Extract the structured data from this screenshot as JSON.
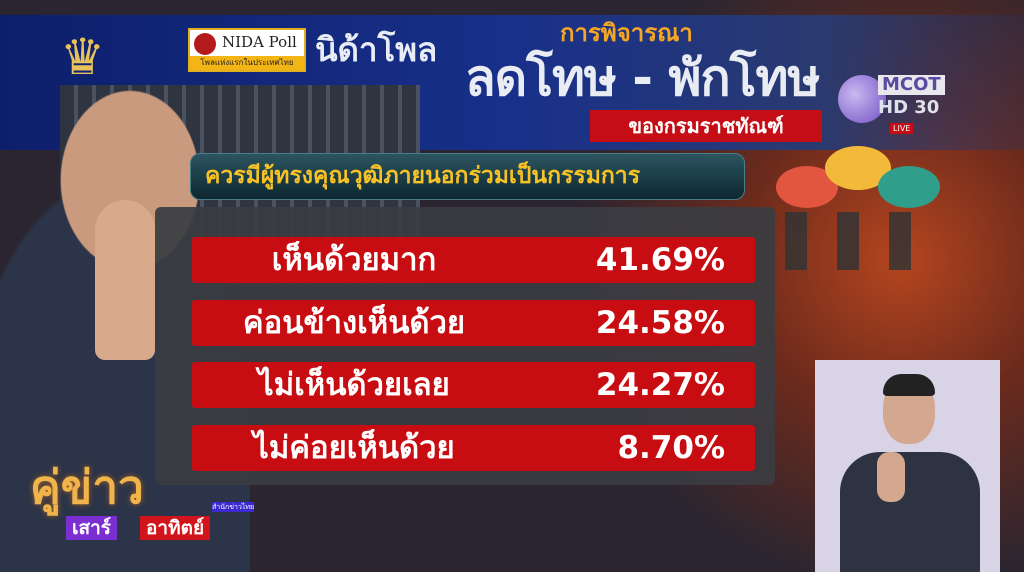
{
  "header": {
    "nida_logo": "NIDA Poll",
    "nida_tagline": "โพลแห่งแรกในประเทศไทย",
    "nida_thai": "นิด้าโพล",
    "title_top": "การพิจารณา",
    "title_main": "ลดโทษ - พักโทษ",
    "title_sub": "ของกรมราชทัณฑ์"
  },
  "channel": {
    "name": "MCOT",
    "hd": "HD 30",
    "live": "LIVE"
  },
  "question": "ควรมีผู้ทรงคุณวุฒิภายนอกร่วมเป็นกรรมการ",
  "results": [
    {
      "label": "เห็นด้วยมาก",
      "value": "41.69%"
    },
    {
      "label": "ค่อนข้างเห็นด้วย",
      "value": "24.58%"
    },
    {
      "label": "ไม่เห็นด้วยเลย",
      "value": "24.27%"
    },
    {
      "label": "ไม่ค่อยเห็นด้วย",
      "value": "8.70%"
    }
  ],
  "program": {
    "title": "คู่ข่าว",
    "day1": "เสาร์",
    "day2": "อาทิตย์",
    "agency": "สำนักข่าวไทย"
  },
  "colors": {
    "bar": "#c70d12",
    "header": "#18308a",
    "question_text": "#f6c226"
  }
}
